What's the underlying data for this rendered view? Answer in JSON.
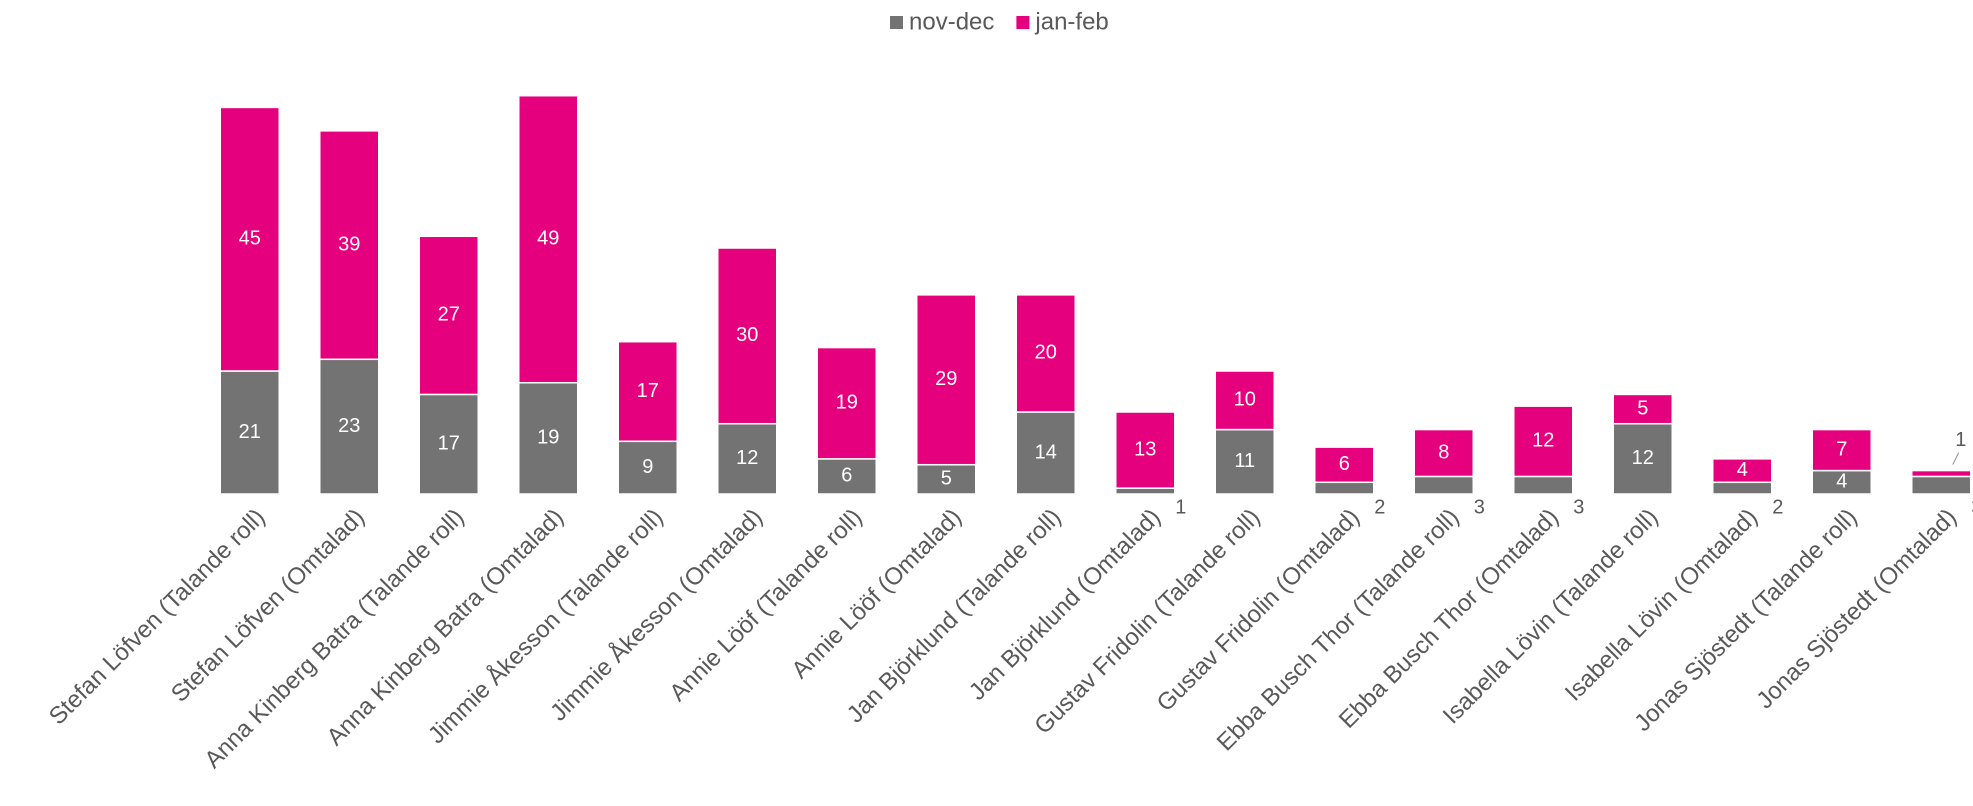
{
  "chart_data": {
    "type": "stacked_bar",
    "categories": [
      "Stefan Löfven (Talande roll)",
      "Stefan Löfven (Omtalad)",
      "Anna Kinberg Batra (Talande roll)",
      "Anna Kinberg Batra (Omtalad)",
      "Jimmie Åkesson (Talande roll)",
      "Jimmie Åkesson (Omtalad)",
      "Annie Lööf (Talande roll)",
      "Annie Lööf (Omtalad)",
      "Jan Björklund (Talande roll)",
      "Jan Björklund (Omtalad)",
      "Gustav Fridolin (Talande roll)",
      "Gustav Fridolin (Omtalad)",
      "Ebba Busch Thor (Talande roll)",
      "Ebba Busch Thor (Omtalad)",
      "Isabella Lövin (Talande roll)",
      "Isabella Lövin (Omtalad)",
      "Jonas Sjöstedt (Talande roll)",
      "Jonas Sjöstedt (Omtalad)"
    ],
    "series": [
      {
        "name": "nov-dec",
        "color": "#737373",
        "values": [
          21,
          23,
          17,
          19,
          9,
          12,
          6,
          5,
          14,
          1,
          11,
          2,
          3,
          3,
          12,
          2,
          4,
          3
        ]
      },
      {
        "name": "jan-feb",
        "color": "#e5007d",
        "values": [
          45,
          39,
          27,
          49,
          17,
          30,
          19,
          29,
          20,
          13,
          10,
          6,
          8,
          12,
          5,
          4,
          7,
          1
        ]
      }
    ],
    "ylim": [
      0,
      70
    ],
    "legend": "top"
  }
}
